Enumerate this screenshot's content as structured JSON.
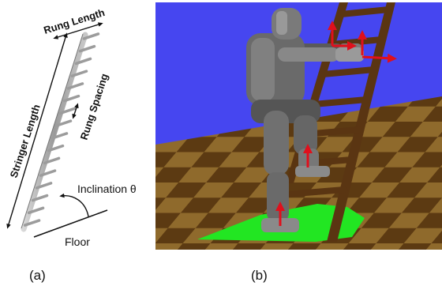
{
  "panel_a": {
    "rung_length_label": "Rung Length",
    "rung_spacing_label": "Rung Spacing",
    "stringer_length_label": "Stringer Length",
    "inclination_label": "Inclination θ",
    "floor_label": "Floor",
    "caption": "(a)",
    "rung_count": 16
  },
  "panel_b": {
    "caption": "(b)",
    "colors": {
      "sky": "#4646f0",
      "floor_dark": "#5c3a12",
      "floor_light": "#8f6a2c",
      "support_polygon": "#22e622",
      "ladder_wood": "#5a3512",
      "robot_gray": "#6a6a6a",
      "force_arrows": "#e0101c"
    }
  }
}
